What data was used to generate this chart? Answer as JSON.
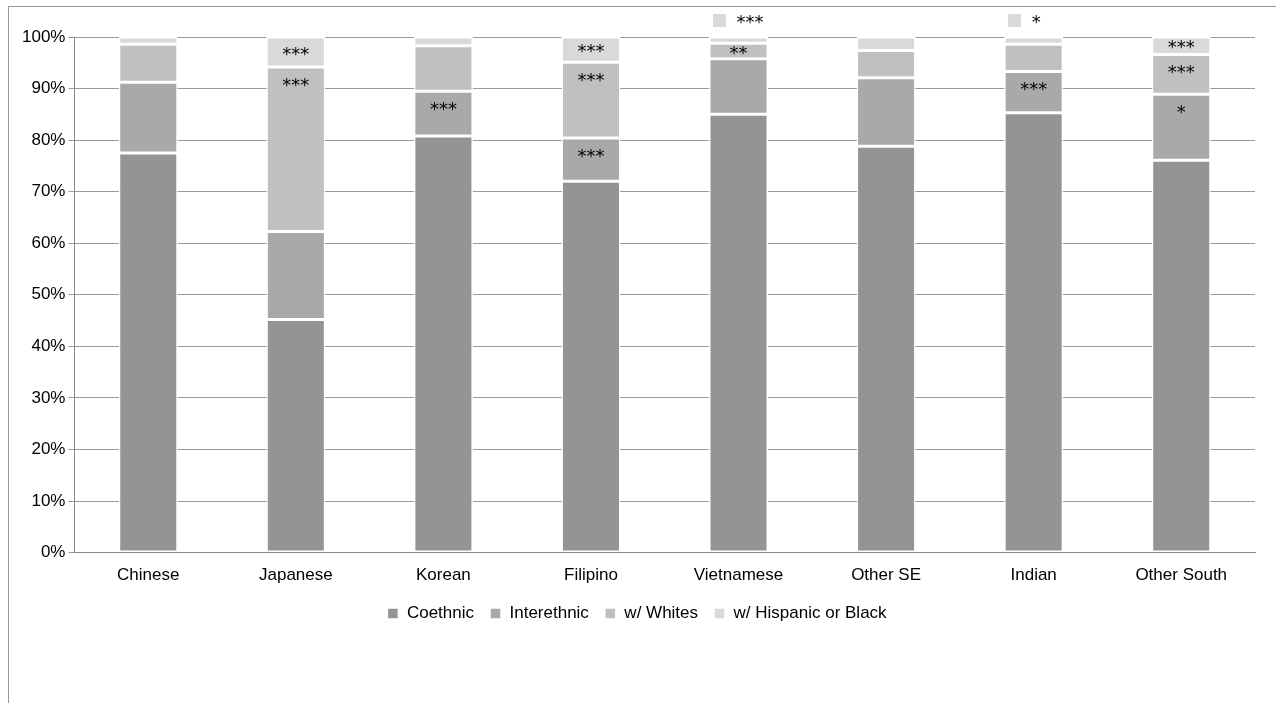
{
  "chart_data": {
    "type": "bar",
    "stacked": true,
    "categories": [
      "Chinese",
      "Japanese",
      "Korean",
      "Filipino",
      "Vietnamese",
      "Other SE",
      "Indian",
      "Other South"
    ],
    "series": [
      {
        "name": "Coethnic",
        "color": "#949494",
        "values": [
          77.5,
          45.2,
          80.8,
          72.0,
          85.0,
          78.8,
          85.3,
          76.1
        ]
      },
      {
        "name": "Interethnic",
        "color": "#a9a9a9",
        "values": [
          13.7,
          17.1,
          8.7,
          8.4,
          10.8,
          13.3,
          8.0,
          12.8
        ]
      },
      {
        "name": "w/ Whites",
        "color": "#c0c0c0",
        "values": [
          7.4,
          31.9,
          8.8,
          14.7,
          3.0,
          5.3,
          5.3,
          7.7
        ]
      },
      {
        "name": "w/ Hispanic or Black",
        "color": "#d9d9d9",
        "values": [
          1.4,
          5.8,
          1.7,
          4.9,
          1.2,
          2.6,
          1.4,
          3.4
        ]
      }
    ],
    "ylim": [
      0,
      100
    ],
    "yticks": [
      {
        "value": 0,
        "label": "0%"
      },
      {
        "value": 10,
        "label": "10%"
      },
      {
        "value": 20,
        "label": "20%"
      },
      {
        "value": 30,
        "label": "30%"
      },
      {
        "value": 40,
        "label": "40%"
      },
      {
        "value": 50,
        "label": "50%"
      },
      {
        "value": 60,
        "label": "60%"
      },
      {
        "value": 70,
        "label": "70%"
      },
      {
        "value": 80,
        "label": "80%"
      },
      {
        "value": 90,
        "label": "90%"
      },
      {
        "value": 100,
        "label": "100%"
      }
    ],
    "grid": "y",
    "legend": "bottom",
    "annotations": [
      {
        "text": "***",
        "x": "Japanese",
        "y": 100.0
      },
      {
        "text": "***",
        "x": "Japanese",
        "y": 94.2
      },
      {
        "text": "***",
        "x": "Korean",
        "y": 89.5
      },
      {
        "text": "***",
        "x": "Filipino",
        "y": 100.0
      },
      {
        "text": "***",
        "x": "Filipino",
        "y": 95.1
      },
      {
        "text": "***",
        "x": "Filipino",
        "y": 80.4
      },
      {
        "text": "**",
        "x": "Vietnamese",
        "y": 98.8
      },
      {
        "text": "***",
        "x": "Vietnamese",
        "y": 100.0
      },
      {
        "text": "***",
        "x": "Indian",
        "y": 93.3
      },
      {
        "text": "*",
        "x": "Indian",
        "y": 100.0
      },
      {
        "text": "***",
        "x": "Other South",
        "y": 100.0
      },
      {
        "text": "***",
        "x": "Other South",
        "y": 96.6
      },
      {
        "text": "*",
        "x": "Other South",
        "y": 88.9
      }
    ]
  }
}
